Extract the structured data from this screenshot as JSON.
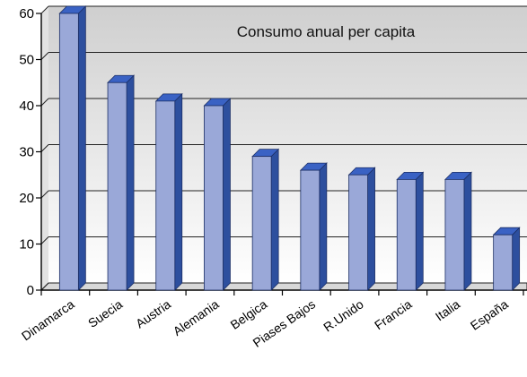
{
  "chart_data": {
    "type": "bar",
    "title": "Consumo anual per capita",
    "xlabel": "",
    "ylabel": "",
    "categories": [
      "Dinamarca",
      "Suecia",
      "Austria",
      "Alemania",
      "Belgica",
      "Piases Bajos",
      "R.Unido",
      "Francia",
      "Italia",
      "España"
    ],
    "values": [
      60,
      45,
      41,
      40,
      29,
      26,
      25,
      24,
      24,
      12
    ],
    "ylim": [
      0,
      60
    ],
    "yticks": [
      "0",
      "10",
      "20",
      "30",
      "40",
      "50",
      "60"
    ],
    "grid": true,
    "style": "3d",
    "colors": {
      "bar_front": "#9aa8d8",
      "bar_side": "#2d4f9e",
      "bar_top": "#3a62c4",
      "background_top": "#cfcfcf",
      "background_bottom": "#ffffff"
    }
  }
}
